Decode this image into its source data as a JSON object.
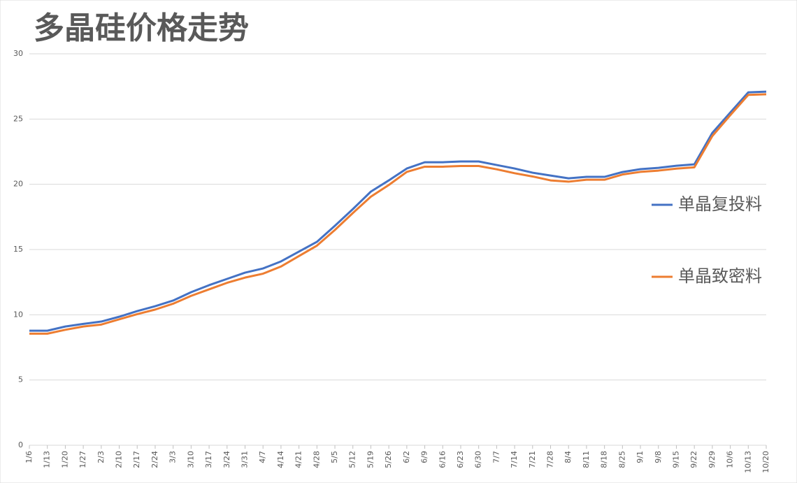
{
  "chart_data": {
    "type": "line",
    "title": "多晶硅价格走势",
    "categories": [
      "1/6",
      "1/13",
      "1/20",
      "1/27",
      "2/3",
      "2/10",
      "2/17",
      "2/24",
      "3/3",
      "3/10",
      "3/17",
      "3/24",
      "3/31",
      "4/7",
      "4/14",
      "4/21",
      "4/28",
      "5/5",
      "5/12",
      "5/19",
      "5/26",
      "6/2",
      "6/9",
      "6/16",
      "6/23",
      "6/30",
      "7/7",
      "7/14",
      "7/21",
      "7/28",
      "8/4",
      "8/11",
      "8/18",
      "8/25",
      "9/1",
      "9/8",
      "9/15",
      "9/22",
      "9/29",
      "10/6",
      "10/13",
      "10/20"
    ],
    "series": [
      {
        "name": "单晶复投料",
        "color": "#4472c4",
        "values": [
          8.78,
          8.78,
          9.1,
          9.3,
          9.48,
          9.85,
          10.28,
          10.66,
          11.09,
          11.73,
          12.27,
          12.75,
          13.23,
          13.55,
          14.09,
          14.84,
          15.59,
          16.82,
          18.1,
          19.44,
          20.3,
          21.21,
          21.69,
          21.69,
          21.75,
          21.75,
          21.48,
          21.21,
          20.89,
          20.67,
          20.46,
          20.57,
          20.57,
          20.94,
          21.16,
          21.26,
          21.42,
          21.53,
          23.94,
          25.5,
          27.05,
          27.1
        ]
      },
      {
        "name": "单晶致密料",
        "color": "#ed7d31",
        "values": [
          8.55,
          8.55,
          8.85,
          9.1,
          9.25,
          9.65,
          10.05,
          10.4,
          10.85,
          11.45,
          11.95,
          12.45,
          12.85,
          13.15,
          13.7,
          14.5,
          15.3,
          16.5,
          17.8,
          19.05,
          19.95,
          20.95,
          21.35,
          21.35,
          21.4,
          21.4,
          21.15,
          20.85,
          20.6,
          20.3,
          20.2,
          20.35,
          20.35,
          20.75,
          20.95,
          21.05,
          21.2,
          21.3,
          23.7,
          25.3,
          26.85,
          26.9
        ]
      }
    ],
    "ylim": [
      0,
      30
    ],
    "yticks": [
      0,
      5,
      10,
      15,
      20,
      25,
      30
    ],
    "grid": true,
    "legend": "right"
  }
}
